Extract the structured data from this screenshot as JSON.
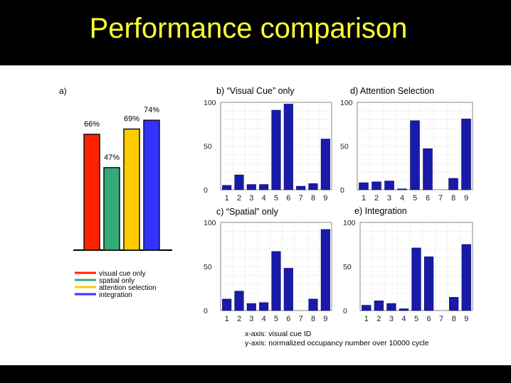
{
  "slide": {
    "title": "Performance comparison",
    "xaxis_note": "x-axis: visual cue ID",
    "yaxis_note": "y-axis: normalized occupancy number over 10000 cycle"
  },
  "colors": {
    "title": "#ffff33",
    "visual_cue_only": "#ff2200",
    "spatial_only": "#33aa77",
    "attention_selection": "#ffcc00",
    "integration": "#3333ff",
    "small_bar": "#1a1aaa"
  },
  "chart_data": [
    {
      "id": "a",
      "type": "bar",
      "panel_label": "a)",
      "categories": [
        "visual cue only",
        "spatial only",
        "attention selection",
        "integration"
      ],
      "values": [
        66,
        47,
        69,
        74
      ],
      "data_labels": [
        "66%",
        "47%",
        "69%",
        "74%"
      ],
      "colors": [
        "#ff2200",
        "#33aa77",
        "#ffcc00",
        "#3333ff"
      ],
      "ylim": [
        0,
        100
      ],
      "legend": [
        "visual cue only",
        "spatial only",
        "attention selection",
        "integration"
      ],
      "legend_position": "bottom-left"
    },
    {
      "id": "b",
      "type": "bar",
      "title": "b) “Visual Cue” only",
      "categories": [
        "1",
        "2",
        "3",
        "4",
        "5",
        "6",
        "7",
        "8",
        "9"
      ],
      "values": [
        5,
        17,
        6,
        6,
        91,
        98,
        4,
        7,
        58
      ],
      "ylim": [
        0,
        100
      ],
      "yticks": [
        "100",
        "50",
        "0"
      ],
      "grid": true
    },
    {
      "id": "d",
      "type": "bar",
      "title": "d) Attention Selection",
      "categories": [
        "1",
        "2",
        "3",
        "4",
        "5",
        "6",
        "7",
        "8",
        "9"
      ],
      "values": [
        8,
        9,
        10,
        1,
        79,
        47,
        0,
        13,
        81
      ],
      "ylim": [
        0,
        100
      ],
      "yticks": [
        "100",
        "50",
        "0"
      ],
      "grid": true
    },
    {
      "id": "c",
      "type": "bar",
      "title": "c) “Spatial” only",
      "categories": [
        "1",
        "2",
        "3",
        "4",
        "5",
        "6",
        "7",
        "8",
        "9"
      ],
      "values": [
        13,
        22,
        8,
        9,
        67,
        48,
        0,
        13,
        92
      ],
      "ylim": [
        0,
        100
      ],
      "yticks": [
        "100",
        "50",
        "0"
      ],
      "grid": true
    },
    {
      "id": "e",
      "type": "bar",
      "title": "e) Integration",
      "categories": [
        "1",
        "2",
        "3",
        "4",
        "5",
        "6",
        "7",
        "8",
        "9"
      ],
      "values": [
        6,
        11,
        8,
        2,
        71,
        61,
        0,
        15,
        75
      ],
      "ylim": [
        0,
        100
      ],
      "yticks": [
        "100",
        "50",
        "0"
      ],
      "grid": true
    }
  ]
}
